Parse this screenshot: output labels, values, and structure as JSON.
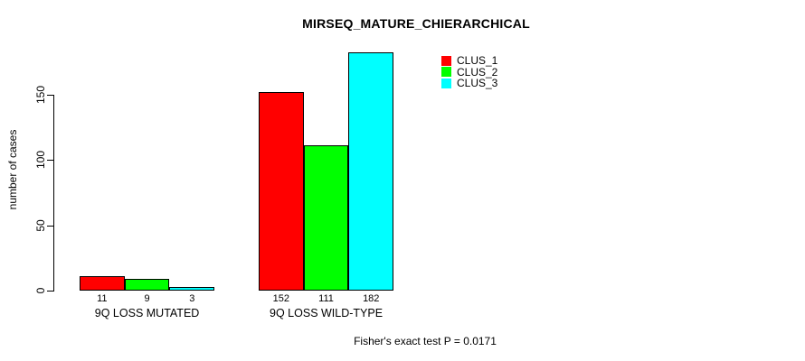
{
  "chart_data": {
    "type": "bar",
    "title": "MIRSEQ_MATURE_CHIERARCHICAL",
    "xlabel": "",
    "ylabel": "number of cases",
    "categories": [
      "9Q LOSS MUTATED",
      "9Q LOSS WILD-TYPE"
    ],
    "series": [
      {
        "name": "CLUS_1",
        "color": "#ff0000",
        "values": [
          11,
          152
        ]
      },
      {
        "name": "CLUS_2",
        "color": "#00ff00",
        "values": [
          9,
          111
        ]
      },
      {
        "name": "CLUS_3",
        "color": "#00ffff",
        "values": [
          3,
          182
        ]
      }
    ],
    "yticks": [
      0,
      50,
      100,
      150
    ],
    "ylim": [
      0,
      182
    ],
    "bar_value_labels": [
      [
        "11",
        "9",
        "3"
      ],
      [
        "152",
        "111",
        "182"
      ]
    ],
    "grid": false,
    "legend_position": "top-right",
    "annotation": "Fisher's exact test P = 0.0171",
    "background_color": "#ffffff",
    "text_color": "#000000"
  }
}
